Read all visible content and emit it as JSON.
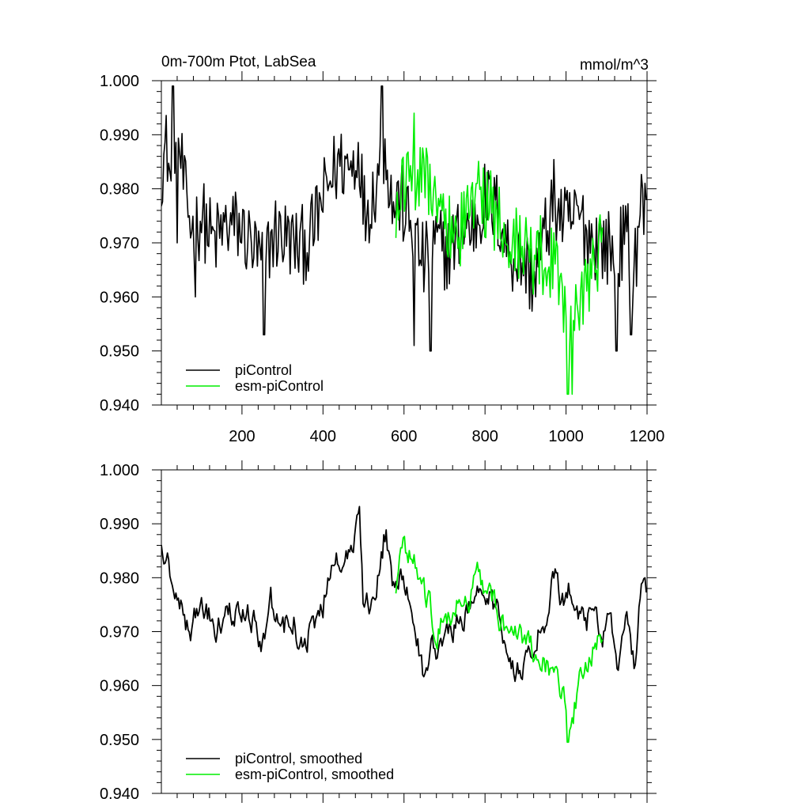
{
  "header": {
    "title": "0m-700m Ptot, LabSea",
    "units": "mmol/m^3"
  },
  "colors": {
    "control": "#000000",
    "esm": "#00ee00"
  },
  "chart_data": [
    {
      "type": "line",
      "title": "0m-700m Ptot, LabSea",
      "units": "mmol/m^3",
      "xlim": [
        1,
        1200
      ],
      "ylim": [
        0.94,
        1.0
      ],
      "yticks": [
        "0.940",
        "0.950",
        "0.960",
        "0.970",
        "0.980",
        "0.990",
        "1.000"
      ],
      "xticks": [
        "200",
        "400",
        "600",
        "800",
        "1000",
        "1200"
      ],
      "legend": "bottom-left",
      "series": [
        {
          "name": "piControl",
          "color": "#000000",
          "x_range": [
            1,
            1200
          ],
          "anchors": [
            [
              1,
              0.984
            ],
            [
              15,
              0.988
            ],
            [
              30,
              0.976
            ],
            [
              45,
              0.988
            ],
            [
              60,
              0.978
            ],
            [
              80,
              0.972
            ],
            [
              100,
              0.975
            ],
            [
              130,
              0.97
            ],
            [
              160,
              0.973
            ],
            [
              190,
              0.973
            ],
            [
              220,
              0.97
            ],
            [
              250,
              0.966
            ],
            [
              280,
              0.972
            ],
            [
              310,
              0.971
            ],
            [
              340,
              0.969
            ],
            [
              370,
              0.971
            ],
            [
              400,
              0.978
            ],
            [
              420,
              0.982
            ],
            [
              440,
              0.985
            ],
            [
              470,
              0.984
            ],
            [
              490,
              0.988
            ],
            [
              500,
              0.976
            ],
            [
              520,
              0.978
            ],
            [
              540,
              0.985
            ],
            [
              555,
              0.988
            ],
            [
              570,
              0.977
            ],
            [
              590,
              0.978
            ],
            [
              620,
              0.972
            ],
            [
              650,
              0.966
            ],
            [
              680,
              0.97
            ],
            [
              710,
              0.968
            ],
            [
              740,
              0.972
            ],
            [
              770,
              0.973
            ],
            [
              800,
              0.978
            ],
            [
              830,
              0.976
            ],
            [
              860,
              0.968
            ],
            [
              890,
              0.967
            ],
            [
              920,
              0.963
            ],
            [
              950,
              0.972
            ],
            [
              970,
              0.978
            ],
            [
              1000,
              0.973
            ],
            [
              1030,
              0.975
            ],
            [
              1060,
              0.971
            ],
            [
              1090,
              0.97
            ],
            [
              1120,
              0.968
            ],
            [
              1150,
              0.971
            ],
            [
              1170,
              0.966
            ],
            [
              1185,
              0.978
            ],
            [
              1200,
              0.974
            ]
          ],
          "noise": 0.0075,
          "spikes": [
            [
              30,
              0.999
            ],
            [
              40,
              0.97
            ],
            [
              85,
              0.96
            ],
            [
              255,
              0.953
            ],
            [
              545,
              0.999
            ],
            [
              625,
              0.951
            ],
            [
              665,
              0.95
            ],
            [
              1125,
              0.95
            ],
            [
              1160,
              0.953
            ]
          ]
        },
        {
          "name": "esm-piControl",
          "color": "#00ee00",
          "x_range": [
            580,
            1090
          ],
          "anchors": [
            [
              580,
              0.978
            ],
            [
              610,
              0.983
            ],
            [
              640,
              0.984
            ],
            [
              670,
              0.978
            ],
            [
              700,
              0.974
            ],
            [
              730,
              0.971
            ],
            [
              760,
              0.976
            ],
            [
              790,
              0.979
            ],
            [
              820,
              0.976
            ],
            [
              850,
              0.972
            ],
            [
              880,
              0.97
            ],
            [
              910,
              0.968
            ],
            [
              940,
              0.968
            ],
            [
              970,
              0.966
            ],
            [
              990,
              0.962
            ],
            [
              1000,
              0.958
            ],
            [
              1010,
              0.955
            ],
            [
              1025,
              0.96
            ],
            [
              1050,
              0.962
            ],
            [
              1070,
              0.967
            ],
            [
              1090,
              0.97
            ]
          ],
          "noise": 0.0075,
          "spikes": [
            [
              625,
              0.994
            ],
            [
              1005,
              0.942
            ],
            [
              1015,
              0.942
            ]
          ]
        }
      ]
    },
    {
      "type": "line",
      "xlim": [
        1,
        1200
      ],
      "ylim": [
        0.94,
        1.0
      ],
      "yticks": [
        "0.940",
        "0.950",
        "0.960",
        "0.970",
        "0.980",
        "0.990",
        "1.000"
      ],
      "legend": "bottom-left",
      "series": [
        {
          "name": "piControl, smoothed",
          "color": "#000000",
          "x_range": [
            1,
            1200
          ],
          "anchors": [
            [
              1,
              0.988
            ],
            [
              15,
              0.984
            ],
            [
              30,
              0.978
            ],
            [
              50,
              0.976
            ],
            [
              70,
              0.969
            ],
            [
              90,
              0.975
            ],
            [
              110,
              0.973
            ],
            [
              140,
              0.971
            ],
            [
              170,
              0.973
            ],
            [
              200,
              0.975
            ],
            [
              230,
              0.972
            ],
            [
              250,
              0.968
            ],
            [
              270,
              0.976
            ],
            [
              300,
              0.971
            ],
            [
              330,
              0.972
            ],
            [
              350,
              0.966
            ],
            [
              370,
              0.971
            ],
            [
              400,
              0.975
            ],
            [
              420,
              0.982
            ],
            [
              440,
              0.983
            ],
            [
              460,
              0.984
            ],
            [
              480,
              0.988
            ],
            [
              490,
              0.991
            ],
            [
              500,
              0.975
            ],
            [
              520,
              0.975
            ],
            [
              540,
              0.982
            ],
            [
              555,
              0.989
            ],
            [
              570,
              0.978
            ],
            [
              590,
              0.981
            ],
            [
              610,
              0.976
            ],
            [
              630,
              0.968
            ],
            [
              650,
              0.962
            ],
            [
              670,
              0.967
            ],
            [
              700,
              0.968
            ],
            [
              730,
              0.972
            ],
            [
              760,
              0.974
            ],
            [
              790,
              0.978
            ],
            [
              810,
              0.977
            ],
            [
              840,
              0.972
            ],
            [
              860,
              0.966
            ],
            [
              890,
              0.961
            ],
            [
              920,
              0.969
            ],
            [
              950,
              0.972
            ],
            [
              970,
              0.981
            ],
            [
              990,
              0.976
            ],
            [
              1010,
              0.978
            ],
            [
              1030,
              0.973
            ],
            [
              1050,
              0.972
            ],
            [
              1070,
              0.975
            ],
            [
              1090,
              0.968
            ],
            [
              1110,
              0.972
            ],
            [
              1130,
              0.963
            ],
            [
              1150,
              0.971
            ],
            [
              1170,
              0.964
            ],
            [
              1185,
              0.979
            ],
            [
              1200,
              0.975
            ]
          ],
          "noise": 0.0022,
          "spikes": []
        },
        {
          "name": "esm-piControl, smoothed",
          "color": "#00ee00",
          "x_range": [
            580,
            1090
          ],
          "anchors": [
            [
              580,
              0.979
            ],
            [
              600,
              0.985
            ],
            [
              620,
              0.984
            ],
            [
              640,
              0.978
            ],
            [
              660,
              0.976
            ],
            [
              680,
              0.97
            ],
            [
              700,
              0.972
            ],
            [
              720,
              0.974
            ],
            [
              740,
              0.977
            ],
            [
              760,
              0.976
            ],
            [
              780,
              0.983
            ],
            [
              800,
              0.978
            ],
            [
              820,
              0.975
            ],
            [
              840,
              0.972
            ],
            [
              860,
              0.968
            ],
            [
              880,
              0.97
            ],
            [
              900,
              0.967
            ],
            [
              920,
              0.966
            ],
            [
              940,
              0.966
            ],
            [
              960,
              0.963
            ],
            [
              980,
              0.962
            ],
            [
              995,
              0.958
            ],
            [
              1005,
              0.95
            ],
            [
              1015,
              0.953
            ],
            [
              1030,
              0.96
            ],
            [
              1050,
              0.963
            ],
            [
              1070,
              0.968
            ],
            [
              1090,
              0.97
            ]
          ],
          "noise": 0.0022,
          "spikes": [
            [
              1005,
              0.9495
            ]
          ]
        }
      ]
    }
  ]
}
